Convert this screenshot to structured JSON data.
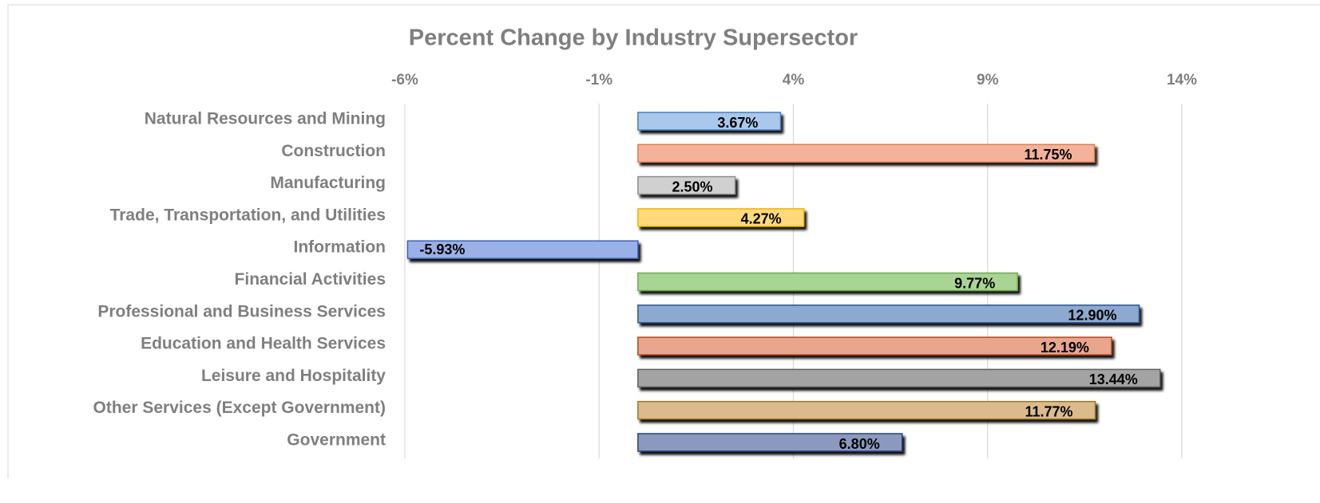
{
  "chart_data": {
    "type": "bar",
    "orientation": "horizontal",
    "title": "Percent Change by Industry Supersector",
    "categories": [
      "Natural Resources and Mining",
      "Construction",
      "Manufacturing",
      "Trade, Transportation, and Utilities",
      "Information",
      "Financial Activities",
      "Professional and Business Services",
      "Education and Health Services",
      "Leisure and Hospitality",
      "Other Services (Except Government)",
      "Government"
    ],
    "values": [
      3.67,
      11.75,
      2.5,
      4.27,
      -5.93,
      9.77,
      12.9,
      12.19,
      13.44,
      11.77,
      6.8
    ],
    "value_labels": [
      "3.67%",
      "11.75%",
      "2.50%",
      "4.27%",
      "-5.93%",
      "9.77%",
      "12.90%",
      "12.19%",
      "13.44%",
      "11.77%",
      "6.80%"
    ],
    "colors": [
      "#a9c8ec",
      "#f4b29a",
      "#d0d0d0",
      "#ffd97a",
      "#9bb0e6",
      "#a9d494",
      "#8ea8cf",
      "#e9a58d",
      "#a3a3a3",
      "#dbbb8d",
      "#8c99bf"
    ],
    "border_colors": [
      "#4a7ebb",
      "#e07b4f",
      "#909090",
      "#f0b400",
      "#3e5fb8",
      "#6aa84f",
      "#2f5597",
      "#b0481f",
      "#606060",
      "#a07820",
      "#2a3f7a"
    ],
    "xlim": [
      -6,
      14
    ],
    "xticks": [
      {
        "value": -6,
        "label": "-6%"
      },
      {
        "value": -1,
        "label": "-1%"
      },
      {
        "value": 4,
        "label": "4%"
      },
      {
        "value": 9,
        "label": "9%"
      },
      {
        "value": 14,
        "label": "14%"
      }
    ],
    "grid": true
  }
}
